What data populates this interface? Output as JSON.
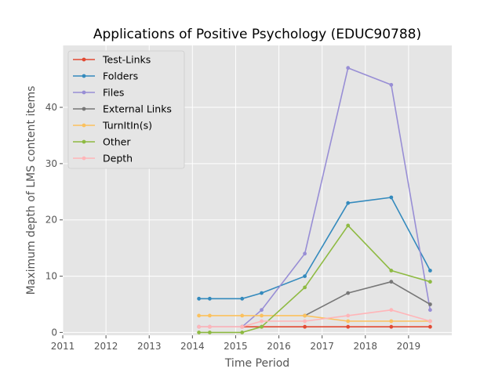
{
  "chart_data": {
    "type": "line",
    "title": "Applications of Positive Psychology (EDUC90788)",
    "xlabel": "Time Period",
    "ylabel": "Maximum depth of LMS content items",
    "xlim": [
      2011.0,
      2020.0
    ],
    "ylim": [
      -0.5,
      51.0
    ],
    "x_ticks": [
      2011,
      2012,
      2013,
      2014,
      2015,
      2016,
      2017,
      2018,
      2019
    ],
    "y_ticks": [
      0,
      10,
      20,
      30,
      40
    ],
    "grid": true,
    "legend_position": "top-left",
    "x": [
      2014.15,
      2014.4,
      2015.15,
      2015.6,
      2016.6,
      2017.6,
      2018.6,
      2019.5
    ],
    "series": [
      {
        "name": "Test-Links",
        "color": "#E24A33",
        "values": [
          null,
          null,
          1,
          1,
          1,
          1,
          1,
          1
        ]
      },
      {
        "name": "Folders",
        "color": "#348ABD",
        "values": [
          6,
          6,
          6,
          7,
          10,
          23,
          24,
          11
        ]
      },
      {
        "name": "Files",
        "color": "#988ED5",
        "values": [
          1,
          1,
          1,
          4,
          14,
          47,
          44,
          4
        ]
      },
      {
        "name": "External Links",
        "color": "#777777",
        "values": [
          null,
          null,
          null,
          null,
          3,
          7,
          9,
          5
        ]
      },
      {
        "name": "TurnItIn(s)",
        "color": "#FBC15E",
        "values": [
          3,
          3,
          3,
          3,
          3,
          2,
          2,
          2
        ]
      },
      {
        "name": "Other",
        "color": "#8EBA42",
        "values": [
          0,
          0,
          0,
          1,
          8,
          19,
          11,
          9
        ]
      },
      {
        "name": "Depth",
        "color": "#FFB5B8",
        "values": [
          1,
          1,
          1,
          2,
          2,
          3,
          4,
          2
        ]
      }
    ]
  }
}
